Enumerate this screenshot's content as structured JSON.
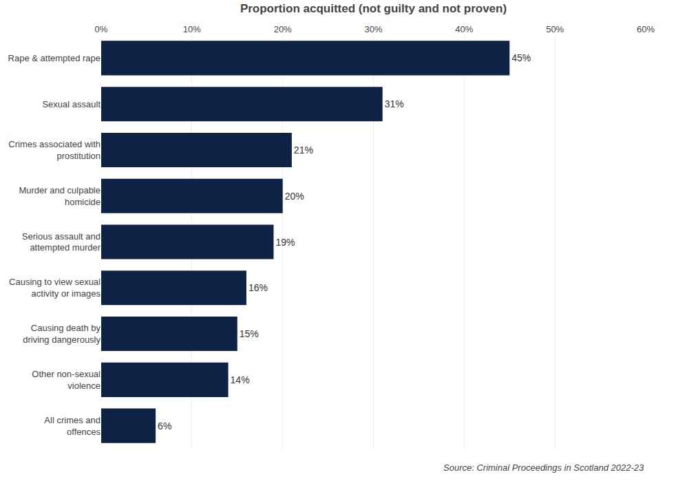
{
  "chart_data": {
    "type": "bar",
    "orientation": "horizontal",
    "xlabel": "Proportion acquitted (not guilty and not proven)",
    "categories": [
      "All crimes and\noffences",
      "Other non-sexual\nviolence",
      "Causing death by\ndriving dangerously",
      "Causing to view sexual\nactivity or images",
      "Serious assault and\nattempted murder",
      "Murder and culpable\nhomicide",
      "Crimes associated with\nprostitution",
      "Sexual assault",
      "Rape & attempted rape"
    ],
    "values": [
      6,
      14,
      15,
      16,
      19,
      20,
      21,
      31,
      45
    ],
    "value_labels": [
      "6%",
      "14%",
      "15%",
      "16%",
      "19%",
      "20%",
      "21%",
      "31%",
      "45%"
    ],
    "data_labels": true,
    "color": "#0d2244",
    "xlim": [
      0,
      60
    ],
    "xticks": [
      {
        "value": 0,
        "label": "0%"
      },
      {
        "value": 10,
        "label": "10%"
      },
      {
        "value": 20,
        "label": "20%"
      },
      {
        "value": 30,
        "label": "30%"
      },
      {
        "value": 40,
        "label": "40%"
      },
      {
        "value": 50,
        "label": "50%"
      },
      {
        "value": 60,
        "label": "60%"
      }
    ],
    "grid": true,
    "source": "Source: Criminal Proceedings in Scotland 2022-23"
  }
}
